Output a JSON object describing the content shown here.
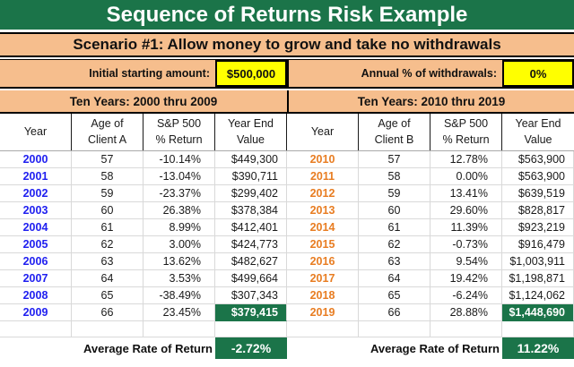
{
  "title": "Sequence of Returns Risk Example",
  "scenario": "Scenario #1: Allow money to grow and take no withdrawals",
  "params": {
    "initial_label": "Initial starting amount:",
    "initial_value": "$500,000",
    "withdrawal_label": "Annual % of withdrawals:",
    "withdrawal_value": "0%"
  },
  "colors": {
    "green": "#1B7449",
    "orange": "#F6BE8D",
    "yellow": "#FFFF00"
  },
  "tables": [
    {
      "section_title": "Ten Years: 2000 thru 2009",
      "year_color": "#2020F0",
      "headers": [
        {
          "l1": "Year",
          "l2": ""
        },
        {
          "l1": "Age of",
          "l2": "Client A"
        },
        {
          "l1": "S&P 500",
          "l2": "% Return"
        },
        {
          "l1": "Year End",
          "l2": "Value"
        }
      ],
      "rows": [
        {
          "year": "2000",
          "age": "57",
          "ret": "-10.14%",
          "value": "$449,300",
          "highlight": false
        },
        {
          "year": "2001",
          "age": "58",
          "ret": "-13.04%",
          "value": "$390,711",
          "highlight": false
        },
        {
          "year": "2002",
          "age": "59",
          "ret": "-23.37%",
          "value": "$299,402",
          "highlight": false
        },
        {
          "year": "2003",
          "age": "60",
          "ret": "26.38%",
          "value": "$378,384",
          "highlight": false
        },
        {
          "year": "2004",
          "age": "61",
          "ret": "8.99%",
          "value": "$412,401",
          "highlight": false
        },
        {
          "year": "2005",
          "age": "62",
          "ret": "3.00%",
          "value": "$424,773",
          "highlight": false
        },
        {
          "year": "2006",
          "age": "63",
          "ret": "13.62%",
          "value": "$482,627",
          "highlight": false
        },
        {
          "year": "2007",
          "age": "64",
          "ret": "3.53%",
          "value": "$499,664",
          "highlight": false
        },
        {
          "year": "2008",
          "age": "65",
          "ret": "-38.49%",
          "value": "$307,343",
          "highlight": false
        },
        {
          "year": "2009",
          "age": "66",
          "ret": "23.45%",
          "value": "$379,415",
          "highlight": true
        }
      ],
      "average_label": "Average Rate of Return",
      "average_value": "-2.72%"
    },
    {
      "section_title": "Ten Years: 2010 thru 2019",
      "year_color": "#E87D22",
      "headers": [
        {
          "l1": "Year",
          "l2": ""
        },
        {
          "l1": "Age of",
          "l2": "Client B"
        },
        {
          "l1": "S&P 500",
          "l2": "% Return"
        },
        {
          "l1": "Year End",
          "l2": "Value"
        }
      ],
      "rows": [
        {
          "year": "2010",
          "age": "57",
          "ret": "12.78%",
          "value": "$563,900",
          "highlight": false
        },
        {
          "year": "2011",
          "age": "58",
          "ret": "0.00%",
          "value": "$563,900",
          "highlight": false
        },
        {
          "year": "2012",
          "age": "59",
          "ret": "13.41%",
          "value": "$639,519",
          "highlight": false
        },
        {
          "year": "2013",
          "age": "60",
          "ret": "29.60%",
          "value": "$828,817",
          "highlight": false
        },
        {
          "year": "2014",
          "age": "61",
          "ret": "11.39%",
          "value": "$923,219",
          "highlight": false
        },
        {
          "year": "2015",
          "age": "62",
          "ret": "-0.73%",
          "value": "$916,479",
          "highlight": false
        },
        {
          "year": "2016",
          "age": "63",
          "ret": "9.54%",
          "value": "$1,003,911",
          "highlight": false
        },
        {
          "year": "2017",
          "age": "64",
          "ret": "19.42%",
          "value": "$1,198,871",
          "highlight": false
        },
        {
          "year": "2018",
          "age": "65",
          "ret": "-6.24%",
          "value": "$1,124,062",
          "highlight": false
        },
        {
          "year": "2019",
          "age": "66",
          "ret": "28.88%",
          "value": "$1,448,690",
          "highlight": true
        }
      ],
      "average_label": "Average Rate of Return",
      "average_value": "11.22%"
    }
  ]
}
